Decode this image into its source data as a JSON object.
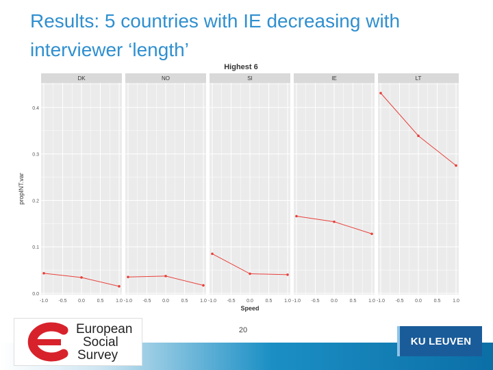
{
  "slide": {
    "title": "Results: 5 countries with IE decreasing with interviewer ‘length’",
    "page_number": "20"
  },
  "logos": {
    "ess": {
      "line1": "European",
      "line2": "Social",
      "line3": "Survey",
      "accent_color": "#d7222b"
    },
    "kuleuven": {
      "text": "KU LEUVEN",
      "color": "#1a5c9a"
    }
  },
  "chart_data": {
    "type": "line",
    "title": "Highest 6",
    "xlabel": "Speed",
    "ylabel": "propINT.var",
    "ylim": [
      0.0,
      0.45
    ],
    "yticks": [
      "0.0",
      "0.1",
      "0.2",
      "0.3",
      "0.4"
    ],
    "xticks": [
      "-1.0",
      "-0.5",
      "0.0",
      "0.5",
      "1.0"
    ],
    "xlim": [
      -1.0,
      1.0
    ],
    "grid": true,
    "line_color": "#e8403a",
    "panels": [
      {
        "name": "DK",
        "x": [
          -1.0,
          0.0,
          1.0
        ],
        "y": [
          0.043,
          0.034,
          0.015
        ]
      },
      {
        "name": "NO",
        "x": [
          -1.0,
          0.0,
          1.0
        ],
        "y": [
          0.035,
          0.037,
          0.017
        ]
      },
      {
        "name": "SI",
        "x": [
          -1.0,
          0.0,
          1.0
        ],
        "y": [
          0.085,
          0.042,
          0.04
        ]
      },
      {
        "name": "IE",
        "x": [
          -1.0,
          0.0,
          1.0
        ],
        "y": [
          0.166,
          0.154,
          0.128
        ]
      },
      {
        "name": "LT",
        "x": [
          -1.0,
          0.0,
          1.0
        ],
        "y": [
          0.431,
          0.339,
          0.275
        ]
      }
    ]
  }
}
